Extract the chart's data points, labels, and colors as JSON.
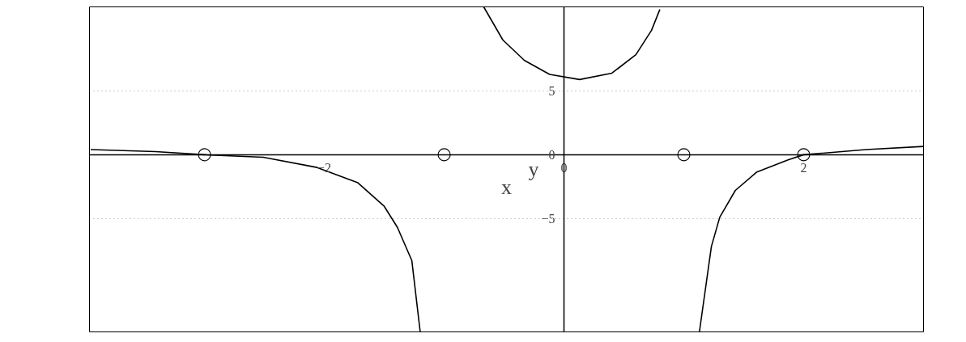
{
  "chart_data": {
    "type": "line",
    "xlabel": "x",
    "ylabel": "y",
    "xlim": [
      -3.96,
      3.0
    ],
    "ylim": [
      -13.9,
      11.6
    ],
    "xticks": [
      -2,
      0,
      2
    ],
    "yticks": [
      -5,
      0,
      5
    ],
    "grid": "y",
    "line_style": "solid",
    "series": [
      {
        "color": "#000000",
        "marker": "none",
        "x": [
          -3.95,
          -3.41,
          -3.0,
          -2.51,
          -2.06,
          -1.72,
          -1.5,
          -1.39,
          -1.27,
          -1.2
        ],
        "values": [
          0.4,
          0.25,
          0,
          -0.2,
          -1.0,
          -2.2,
          -4.05,
          -5.7,
          -8.3,
          -13.9
        ]
      },
      {
        "color": "#000000",
        "marker": "none",
        "x": [
          -0.67,
          -0.51,
          -0.33,
          -0.12,
          0.13,
          0.4,
          0.6,
          0.73,
          0.8
        ],
        "values": [
          11.6,
          9.0,
          7.4,
          6.3,
          5.9,
          6.4,
          7.85,
          9.75,
          11.4
        ]
      },
      {
        "color": "#000000",
        "marker": "none",
        "x": [
          1.13,
          1.23,
          1.3,
          1.43,
          1.61,
          1.87,
          2.0,
          2.52,
          3.0
        ],
        "values": [
          -13.9,
          -7.2,
          -4.9,
          -2.8,
          -1.35,
          -0.4,
          0,
          0.4,
          0.65
        ]
      },
      {
        "type": "scatter",
        "color": "#000000",
        "marker": "circle",
        "x": [
          -3,
          -1,
          1,
          2
        ],
        "values": [
          0,
          0,
          0,
          0
        ]
      }
    ]
  }
}
